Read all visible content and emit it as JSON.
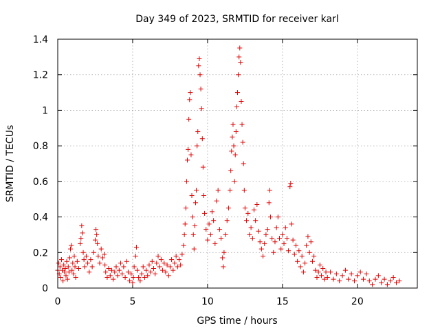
{
  "chart_data": {
    "type": "scatter",
    "title": "Day 349 of 2023, SRMTID for receiver karl",
    "xlabel": "GPS time / hours",
    "ylabel": "SRMTID / TECUs",
    "xlim": [
      0,
      24
    ],
    "ylim": [
      0,
      1.4
    ],
    "xticks": [
      0,
      5,
      10,
      15,
      20
    ],
    "xtick_labels": [
      "0",
      "5",
      "10",
      "15",
      "20"
    ],
    "yticks": [
      0,
      0.2,
      0.4,
      0.6,
      0.8,
      1,
      1.2,
      1.4
    ],
    "ytick_labels": [
      "0",
      "0.2",
      "0.4",
      "0.6",
      "0.8",
      "1",
      "1.2",
      "1.4"
    ],
    "grid": true,
    "marker": "plus",
    "color": "#e00000",
    "series": [
      {
        "name": "SRMTID",
        "points": [
          [
            0.0,
            0.1
          ],
          [
            0.05,
            0.14
          ],
          [
            0.1,
            0.08
          ],
          [
            0.15,
            0.12
          ],
          [
            0.2,
            0.06
          ],
          [
            0.25,
            0.16
          ],
          [
            0.3,
            0.1
          ],
          [
            0.35,
            0.04
          ],
          [
            0.4,
            0.13
          ],
          [
            0.45,
            0.09
          ],
          [
            0.5,
            0.11
          ],
          [
            0.55,
            0.07
          ],
          [
            0.6,
            0.15
          ],
          [
            0.65,
            0.05
          ],
          [
            0.7,
            0.12
          ],
          [
            0.75,
            0.09
          ],
          [
            0.8,
            0.17
          ],
          [
            0.85,
            0.22
          ],
          [
            0.9,
            0.24
          ],
          [
            0.95,
            0.1
          ],
          [
            1.0,
            0.14
          ],
          [
            1.05,
            0.08
          ],
          [
            1.1,
            0.18
          ],
          [
            1.15,
            0.12
          ],
          [
            1.2,
            0.06
          ],
          [
            1.3,
            0.15
          ],
          [
            1.4,
            0.11
          ],
          [
            1.5,
            0.25
          ],
          [
            1.55,
            0.28
          ],
          [
            1.6,
            0.35
          ],
          [
            1.65,
            0.31
          ],
          [
            1.7,
            0.2
          ],
          [
            1.75,
            0.16
          ],
          [
            1.8,
            0.12
          ],
          [
            1.9,
            0.18
          ],
          [
            2.0,
            0.14
          ],
          [
            2.1,
            0.09
          ],
          [
            2.2,
            0.16
          ],
          [
            2.3,
            0.12
          ],
          [
            2.4,
            0.2
          ],
          [
            2.5,
            0.27
          ],
          [
            2.55,
            0.33
          ],
          [
            2.6,
            0.3
          ],
          [
            2.65,
            0.25
          ],
          [
            2.7,
            0.18
          ],
          [
            2.8,
            0.14
          ],
          [
            2.9,
            0.22
          ],
          [
            3.0,
            0.17
          ],
          [
            3.1,
            0.19
          ],
          [
            3.15,
            0.13
          ],
          [
            3.2,
            0.09
          ],
          [
            3.3,
            0.06
          ],
          [
            3.4,
            0.11
          ],
          [
            3.5,
            0.07
          ],
          [
            3.6,
            0.1
          ],
          [
            3.7,
            0.05
          ],
          [
            3.8,
            0.09
          ],
          [
            3.9,
            0.12
          ],
          [
            4.0,
            0.07
          ],
          [
            4.1,
            0.1
          ],
          [
            4.2,
            0.14
          ],
          [
            4.3,
            0.08
          ],
          [
            4.4,
            0.12
          ],
          [
            4.5,
            0.06
          ],
          [
            4.6,
            0.15
          ],
          [
            4.7,
            0.09
          ],
          [
            4.8,
            0.04
          ],
          [
            4.9,
            0.08
          ],
          [
            5.0,
            0.03
          ],
          [
            5.05,
            0.06
          ],
          [
            5.1,
            0.12
          ],
          [
            5.2,
            0.18
          ],
          [
            5.25,
            0.23
          ],
          [
            5.3,
            0.1
          ],
          [
            5.4,
            0.06
          ],
          [
            5.5,
            0.04
          ],
          [
            5.6,
            0.08
          ],
          [
            5.7,
            0.12
          ],
          [
            5.8,
            0.06
          ],
          [
            5.9,
            0.1
          ],
          [
            6.0,
            0.07
          ],
          [
            6.1,
            0.13
          ],
          [
            6.2,
            0.09
          ],
          [
            6.3,
            0.15
          ],
          [
            6.4,
            0.11
          ],
          [
            6.5,
            0.08
          ],
          [
            6.6,
            0.14
          ],
          [
            6.7,
            0.18
          ],
          [
            6.8,
            0.12
          ],
          [
            6.9,
            0.16
          ],
          [
            7.0,
            0.1
          ],
          [
            7.1,
            0.14
          ],
          [
            7.2,
            0.09
          ],
          [
            7.3,
            0.13
          ],
          [
            7.4,
            0.07
          ],
          [
            7.5,
            0.12
          ],
          [
            7.6,
            0.16
          ],
          [
            7.7,
            0.1
          ],
          [
            7.8,
            0.14
          ],
          [
            7.9,
            0.18
          ],
          [
            8.0,
            0.12
          ],
          [
            8.1,
            0.16
          ],
          [
            8.2,
            0.13
          ],
          [
            8.3,
            0.19
          ],
          [
            8.4,
            0.24
          ],
          [
            8.45,
            0.3
          ],
          [
            8.5,
            0.36
          ],
          [
            8.55,
            0.45
          ],
          [
            8.6,
            0.6
          ],
          [
            8.65,
            0.72
          ],
          [
            8.7,
            0.78
          ],
          [
            8.75,
            0.95
          ],
          [
            8.8,
            1.06
          ],
          [
            8.85,
            1.1
          ],
          [
            8.9,
            0.75
          ],
          [
            8.95,
            0.52
          ],
          [
            9.0,
            0.4
          ],
          [
            9.05,
            0.3
          ],
          [
            9.1,
            0.22
          ],
          [
            9.15,
            0.35
          ],
          [
            9.2,
            0.48
          ],
          [
            9.25,
            0.55
          ],
          [
            9.3,
            0.8
          ],
          [
            9.35,
            0.88
          ],
          [
            9.4,
            1.25
          ],
          [
            9.45,
            1.29
          ],
          [
            9.5,
            1.2
          ],
          [
            9.55,
            1.12
          ],
          [
            9.6,
            1.01
          ],
          [
            9.65,
            0.84
          ],
          [
            9.7,
            0.68
          ],
          [
            9.75,
            0.52
          ],
          [
            9.8,
            0.42
          ],
          [
            9.9,
            0.33
          ],
          [
            10.0,
            0.27
          ],
          [
            10.1,
            0.36
          ],
          [
            10.2,
            0.3
          ],
          [
            10.3,
            0.43
          ],
          [
            10.4,
            0.38
          ],
          [
            10.5,
            0.25
          ],
          [
            10.6,
            0.49
          ],
          [
            10.7,
            0.55
          ],
          [
            10.8,
            0.33
          ],
          [
            10.9,
            0.28
          ],
          [
            11.0,
            0.17
          ],
          [
            11.05,
            0.12
          ],
          [
            11.1,
            0.2
          ],
          [
            11.2,
            0.3
          ],
          [
            11.3,
            0.38
          ],
          [
            11.4,
            0.45
          ],
          [
            11.5,
            0.55
          ],
          [
            11.55,
            0.66
          ],
          [
            11.6,
            0.77
          ],
          [
            11.65,
            0.85
          ],
          [
            11.7,
            0.92
          ],
          [
            11.75,
            0.8
          ],
          [
            11.8,
            0.6
          ],
          [
            11.85,
            0.75
          ],
          [
            11.9,
            0.88
          ],
          [
            11.95,
            1.02
          ],
          [
            12.0,
            1.1
          ],
          [
            12.05,
            1.2
          ],
          [
            12.1,
            1.3
          ],
          [
            12.15,
            1.35
          ],
          [
            12.2,
            1.27
          ],
          [
            12.25,
            1.05
          ],
          [
            12.3,
            0.92
          ],
          [
            12.35,
            0.82
          ],
          [
            12.4,
            0.7
          ],
          [
            12.45,
            0.55
          ],
          [
            12.5,
            0.45
          ],
          [
            12.6,
            0.38
          ],
          [
            12.7,
            0.42
          ],
          [
            12.8,
            0.3
          ],
          [
            12.9,
            0.34
          ],
          [
            13.0,
            0.28
          ],
          [
            13.1,
            0.44
          ],
          [
            13.2,
            0.38
          ],
          [
            13.3,
            0.47
          ],
          [
            13.4,
            0.32
          ],
          [
            13.5,
            0.26
          ],
          [
            13.6,
            0.22
          ],
          [
            13.7,
            0.18
          ],
          [
            13.8,
            0.25
          ],
          [
            13.9,
            0.3
          ],
          [
            14.0,
            0.33
          ],
          [
            14.1,
            0.48
          ],
          [
            14.15,
            0.55
          ],
          [
            14.2,
            0.4
          ],
          [
            14.3,
            0.28
          ],
          [
            14.4,
            0.2
          ],
          [
            14.5,
            0.26
          ],
          [
            14.6,
            0.34
          ],
          [
            14.7,
            0.4
          ],
          [
            14.8,
            0.28
          ],
          [
            14.9,
            0.22
          ],
          [
            15.0,
            0.3
          ],
          [
            15.1,
            0.25
          ],
          [
            15.2,
            0.34
          ],
          [
            15.3,
            0.28
          ],
          [
            15.4,
            0.21
          ],
          [
            15.5,
            0.57
          ],
          [
            15.55,
            0.59
          ],
          [
            15.6,
            0.36
          ],
          [
            15.7,
            0.27
          ],
          [
            15.8,
            0.19
          ],
          [
            15.9,
            0.24
          ],
          [
            16.0,
            0.15
          ],
          [
            16.1,
            0.21
          ],
          [
            16.2,
            0.12
          ],
          [
            16.3,
            0.18
          ],
          [
            16.4,
            0.09
          ],
          [
            16.5,
            0.14
          ],
          [
            16.6,
            0.24
          ],
          [
            16.7,
            0.29
          ],
          [
            16.8,
            0.2
          ],
          [
            16.9,
            0.26
          ],
          [
            17.0,
            0.15
          ],
          [
            17.1,
            0.18
          ],
          [
            17.2,
            0.1
          ],
          [
            17.3,
            0.06
          ],
          [
            17.4,
            0.09
          ],
          [
            17.5,
            0.13
          ],
          [
            17.6,
            0.07
          ],
          [
            17.7,
            0.11
          ],
          [
            17.8,
            0.05
          ],
          [
            17.9,
            0.09
          ],
          [
            18.0,
            0.06
          ],
          [
            18.2,
            0.09
          ],
          [
            18.4,
            0.05
          ],
          [
            18.6,
            0.08
          ],
          [
            18.8,
            0.04
          ],
          [
            19.0,
            0.07
          ],
          [
            19.2,
            0.1
          ],
          [
            19.4,
            0.05
          ],
          [
            19.6,
            0.08
          ],
          [
            19.8,
            0.04
          ],
          [
            20.0,
            0.07
          ],
          [
            20.2,
            0.09
          ],
          [
            20.4,
            0.05
          ],
          [
            20.6,
            0.08
          ],
          [
            20.8,
            0.04
          ],
          [
            21.0,
            0.02
          ],
          [
            21.2,
            0.05
          ],
          [
            21.4,
            0.07
          ],
          [
            21.6,
            0.03
          ],
          [
            21.8,
            0.05
          ],
          [
            22.0,
            0.02
          ],
          [
            22.2,
            0.04
          ],
          [
            22.4,
            0.06
          ],
          [
            22.6,
            0.03
          ],
          [
            22.8,
            0.04
          ]
        ]
      }
    ]
  }
}
